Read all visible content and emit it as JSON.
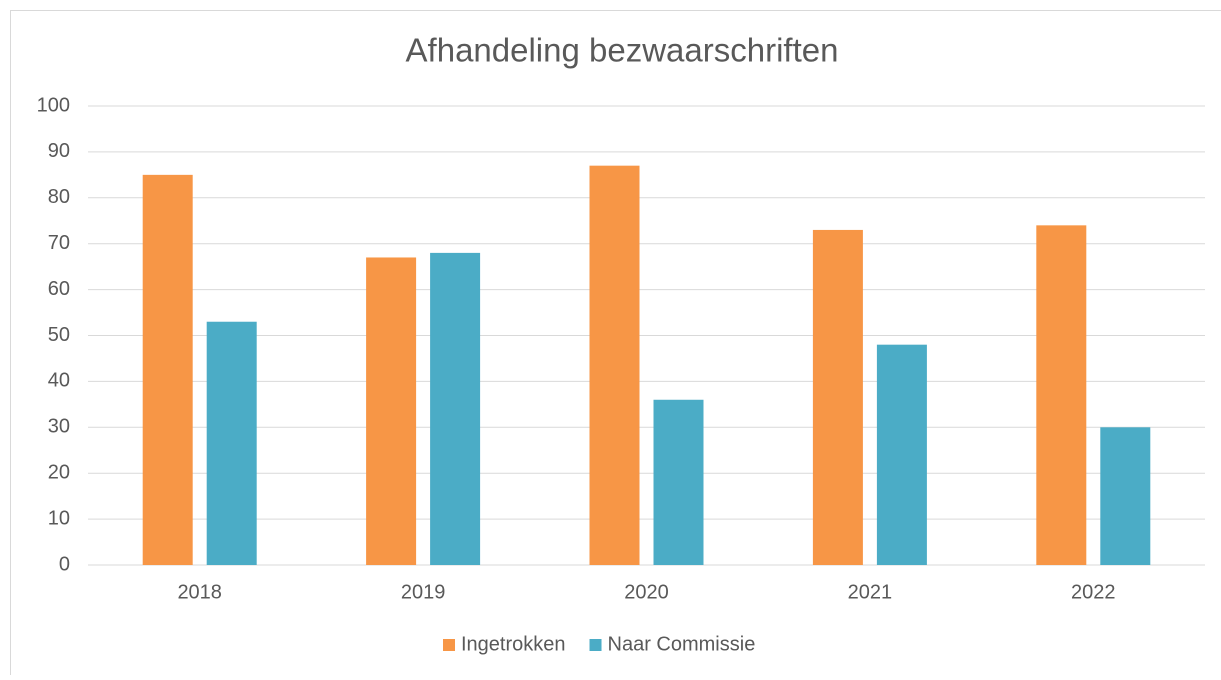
{
  "chart_data": {
    "type": "bar",
    "title": "Afhandeling bezwaarschriften",
    "categories": [
      "2018",
      "2019",
      "2020",
      "2021",
      "2022"
    ],
    "series": [
      {
        "name": "Ingetrokken",
        "color": "#f79646",
        "values": [
          85,
          67,
          87,
          73,
          74
        ]
      },
      {
        "name": "Naar Commissie",
        "color": "#4bacc6",
        "values": [
          53,
          68,
          36,
          48,
          30
        ]
      }
    ],
    "ylim": [
      0,
      100
    ],
    "yticks": [
      0,
      10,
      20,
      30,
      40,
      50,
      60,
      70,
      80,
      90,
      100
    ],
    "grid": true,
    "legend": "bottom"
  }
}
